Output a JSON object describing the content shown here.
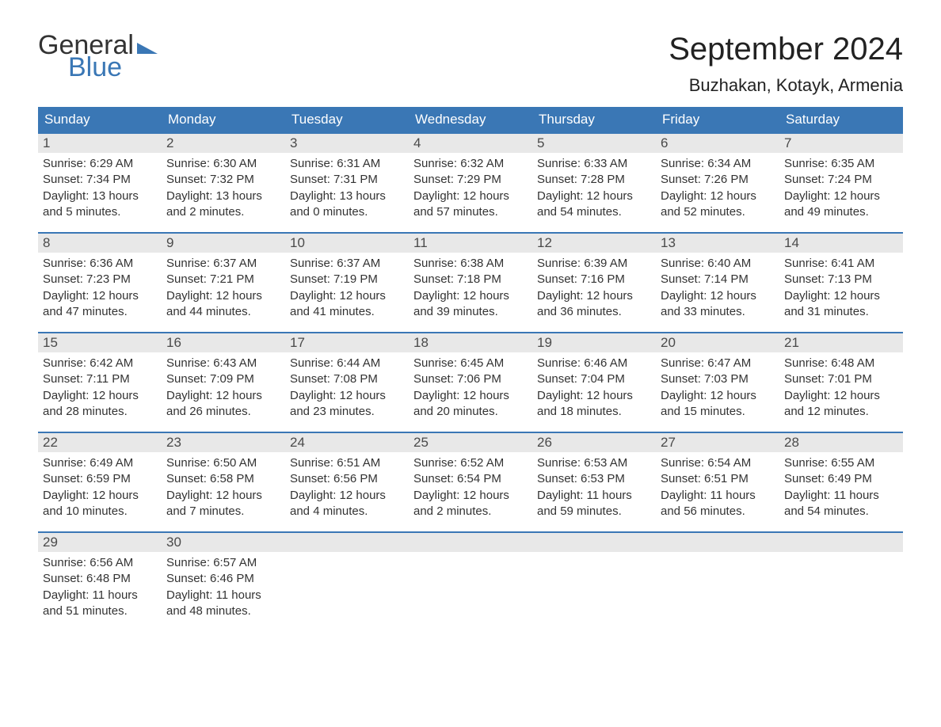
{
  "logo": {
    "general": "General",
    "blue": "Blue"
  },
  "title": "September 2024",
  "location": "Buzhakan, Kotayk, Armenia",
  "columns": [
    "Sunday",
    "Monday",
    "Tuesday",
    "Wednesday",
    "Thursday",
    "Friday",
    "Saturday"
  ],
  "style": {
    "header_bg": "#3a77b5",
    "header_text": "#ffffff",
    "week_border": "#3a77b5",
    "daynum_bg": "#e8e8e8",
    "daynum_text": "#4a4a4a",
    "body_text": "#333333",
    "title_text": "#222222",
    "logo_gray": "#333333",
    "logo_blue": "#3a77b5",
    "page_bg": "#ffffff",
    "month_title_fontsize": 40,
    "location_fontsize": 22,
    "header_fontsize": 17,
    "daynum_fontsize": 17,
    "cell_fontsize": 15
  },
  "weeks": [
    [
      {
        "n": "1",
        "sr": "Sunrise: 6:29 AM",
        "ss": "Sunset: 7:34 PM",
        "d1": "Daylight: 13 hours",
        "d2": "and 5 minutes."
      },
      {
        "n": "2",
        "sr": "Sunrise: 6:30 AM",
        "ss": "Sunset: 7:32 PM",
        "d1": "Daylight: 13 hours",
        "d2": "and 2 minutes."
      },
      {
        "n": "3",
        "sr": "Sunrise: 6:31 AM",
        "ss": "Sunset: 7:31 PM",
        "d1": "Daylight: 13 hours",
        "d2": "and 0 minutes."
      },
      {
        "n": "4",
        "sr": "Sunrise: 6:32 AM",
        "ss": "Sunset: 7:29 PM",
        "d1": "Daylight: 12 hours",
        "d2": "and 57 minutes."
      },
      {
        "n": "5",
        "sr": "Sunrise: 6:33 AM",
        "ss": "Sunset: 7:28 PM",
        "d1": "Daylight: 12 hours",
        "d2": "and 54 minutes."
      },
      {
        "n": "6",
        "sr": "Sunrise: 6:34 AM",
        "ss": "Sunset: 7:26 PM",
        "d1": "Daylight: 12 hours",
        "d2": "and 52 minutes."
      },
      {
        "n": "7",
        "sr": "Sunrise: 6:35 AM",
        "ss": "Sunset: 7:24 PM",
        "d1": "Daylight: 12 hours",
        "d2": "and 49 minutes."
      }
    ],
    [
      {
        "n": "8",
        "sr": "Sunrise: 6:36 AM",
        "ss": "Sunset: 7:23 PM",
        "d1": "Daylight: 12 hours",
        "d2": "and 47 minutes."
      },
      {
        "n": "9",
        "sr": "Sunrise: 6:37 AM",
        "ss": "Sunset: 7:21 PM",
        "d1": "Daylight: 12 hours",
        "d2": "and 44 minutes."
      },
      {
        "n": "10",
        "sr": "Sunrise: 6:37 AM",
        "ss": "Sunset: 7:19 PM",
        "d1": "Daylight: 12 hours",
        "d2": "and 41 minutes."
      },
      {
        "n": "11",
        "sr": "Sunrise: 6:38 AM",
        "ss": "Sunset: 7:18 PM",
        "d1": "Daylight: 12 hours",
        "d2": "and 39 minutes."
      },
      {
        "n": "12",
        "sr": "Sunrise: 6:39 AM",
        "ss": "Sunset: 7:16 PM",
        "d1": "Daylight: 12 hours",
        "d2": "and 36 minutes."
      },
      {
        "n": "13",
        "sr": "Sunrise: 6:40 AM",
        "ss": "Sunset: 7:14 PM",
        "d1": "Daylight: 12 hours",
        "d2": "and 33 minutes."
      },
      {
        "n": "14",
        "sr": "Sunrise: 6:41 AM",
        "ss": "Sunset: 7:13 PM",
        "d1": "Daylight: 12 hours",
        "d2": "and 31 minutes."
      }
    ],
    [
      {
        "n": "15",
        "sr": "Sunrise: 6:42 AM",
        "ss": "Sunset: 7:11 PM",
        "d1": "Daylight: 12 hours",
        "d2": "and 28 minutes."
      },
      {
        "n": "16",
        "sr": "Sunrise: 6:43 AM",
        "ss": "Sunset: 7:09 PM",
        "d1": "Daylight: 12 hours",
        "d2": "and 26 minutes."
      },
      {
        "n": "17",
        "sr": "Sunrise: 6:44 AM",
        "ss": "Sunset: 7:08 PM",
        "d1": "Daylight: 12 hours",
        "d2": "and 23 minutes."
      },
      {
        "n": "18",
        "sr": "Sunrise: 6:45 AM",
        "ss": "Sunset: 7:06 PM",
        "d1": "Daylight: 12 hours",
        "d2": "and 20 minutes."
      },
      {
        "n": "19",
        "sr": "Sunrise: 6:46 AM",
        "ss": "Sunset: 7:04 PM",
        "d1": "Daylight: 12 hours",
        "d2": "and 18 minutes."
      },
      {
        "n": "20",
        "sr": "Sunrise: 6:47 AM",
        "ss": "Sunset: 7:03 PM",
        "d1": "Daylight: 12 hours",
        "d2": "and 15 minutes."
      },
      {
        "n": "21",
        "sr": "Sunrise: 6:48 AM",
        "ss": "Sunset: 7:01 PM",
        "d1": "Daylight: 12 hours",
        "d2": "and 12 minutes."
      }
    ],
    [
      {
        "n": "22",
        "sr": "Sunrise: 6:49 AM",
        "ss": "Sunset: 6:59 PM",
        "d1": "Daylight: 12 hours",
        "d2": "and 10 minutes."
      },
      {
        "n": "23",
        "sr": "Sunrise: 6:50 AM",
        "ss": "Sunset: 6:58 PM",
        "d1": "Daylight: 12 hours",
        "d2": "and 7 minutes."
      },
      {
        "n": "24",
        "sr": "Sunrise: 6:51 AM",
        "ss": "Sunset: 6:56 PM",
        "d1": "Daylight: 12 hours",
        "d2": "and 4 minutes."
      },
      {
        "n": "25",
        "sr": "Sunrise: 6:52 AM",
        "ss": "Sunset: 6:54 PM",
        "d1": "Daylight: 12 hours",
        "d2": "and 2 minutes."
      },
      {
        "n": "26",
        "sr": "Sunrise: 6:53 AM",
        "ss": "Sunset: 6:53 PM",
        "d1": "Daylight: 11 hours",
        "d2": "and 59 minutes."
      },
      {
        "n": "27",
        "sr": "Sunrise: 6:54 AM",
        "ss": "Sunset: 6:51 PM",
        "d1": "Daylight: 11 hours",
        "d2": "and 56 minutes."
      },
      {
        "n": "28",
        "sr": "Sunrise: 6:55 AM",
        "ss": "Sunset: 6:49 PM",
        "d1": "Daylight: 11 hours",
        "d2": "and 54 minutes."
      }
    ],
    [
      {
        "n": "29",
        "sr": "Sunrise: 6:56 AM",
        "ss": "Sunset: 6:48 PM",
        "d1": "Daylight: 11 hours",
        "d2": "and 51 minutes."
      },
      {
        "n": "30",
        "sr": "Sunrise: 6:57 AM",
        "ss": "Sunset: 6:46 PM",
        "d1": "Daylight: 11 hours",
        "d2": "and 48 minutes."
      },
      null,
      null,
      null,
      null,
      null
    ]
  ]
}
